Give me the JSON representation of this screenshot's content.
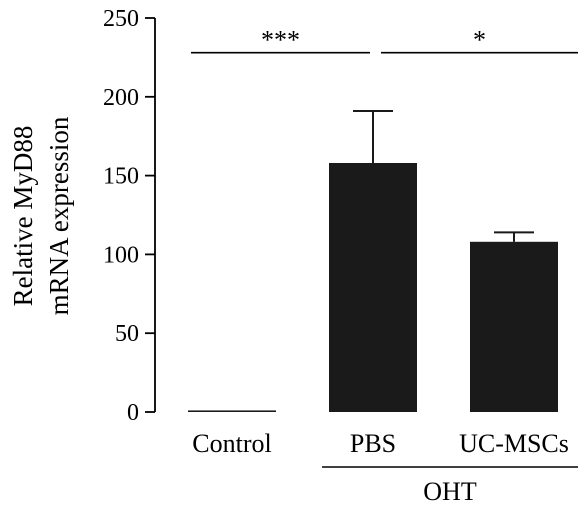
{
  "chart_data": {
    "type": "bar",
    "title": "",
    "ylabel": [
      "Relative MyD88",
      "mRNA expression"
    ],
    "xlabel": "",
    "ylim": [
      0,
      250
    ],
    "yticks": [
      0,
      50,
      100,
      150,
      200,
      250
    ],
    "categories": [
      "Control",
      "PBS",
      "UC-MSCs"
    ],
    "values": [
      1,
      158,
      108
    ],
    "errors": [
      0,
      33,
      6
    ],
    "bar_color": "#1a1a1a",
    "group_label": {
      "text": "OHT",
      "categories": [
        "PBS",
        "UC-MSCs"
      ]
    },
    "significance": [
      {
        "from": "Control",
        "to": "PBS",
        "label": "***",
        "y": 228
      },
      {
        "from": "PBS",
        "to": "UC-MSCs",
        "label": "*",
        "y": 228
      }
    ],
    "grid": false,
    "legend": "none"
  }
}
